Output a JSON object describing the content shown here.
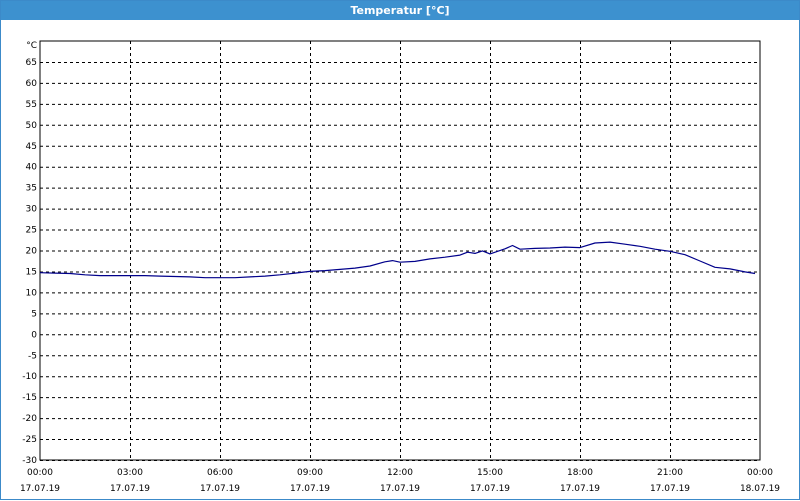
{
  "window": {
    "title": "Temperatur [°C]"
  },
  "chart_data": {
    "type": "line",
    "title": "Temperatur [°C]",
    "ylabel": "°C",
    "xlabel": "",
    "ylim": [
      -30,
      70
    ],
    "xlim": [
      "2019-07-17 00:00",
      "2019-07-18 00:00"
    ],
    "grid": true,
    "y_ticks": [
      65,
      60,
      55,
      50,
      45,
      40,
      35,
      30,
      25,
      20,
      15,
      10,
      5,
      0,
      -5,
      -10,
      -15,
      -20,
      -25,
      -30
    ],
    "x_ticks": [
      {
        "time": "00:00",
        "date": "17.07.19"
      },
      {
        "time": "03:00",
        "date": "17.07.19"
      },
      {
        "time": "06:00",
        "date": "17.07.19"
      },
      {
        "time": "09:00",
        "date": "17.07.19"
      },
      {
        "time": "12:00",
        "date": "17.07.19"
      },
      {
        "time": "15:00",
        "date": "17.07.19"
      },
      {
        "time": "18:00",
        "date": "17.07.19"
      },
      {
        "time": "21:00",
        "date": "17.07.19"
      },
      {
        "time": "00:00",
        "date": "18.07.19"
      }
    ],
    "series": [
      {
        "color": "#00008b",
        "x": [
          "00:00",
          "00:30",
          "01:00",
          "01:30",
          "02:00",
          "02:30",
          "03:00",
          "03:30",
          "04:00",
          "04:30",
          "05:00",
          "05:30",
          "06:00",
          "06:30",
          "07:00",
          "07:30",
          "08:00",
          "08:30",
          "09:00",
          "09:30",
          "10:00",
          "10:30",
          "11:00",
          "11:30",
          "11:45",
          "12:00",
          "12:30",
          "13:00",
          "13:30",
          "14:00",
          "14:15",
          "14:30",
          "14:45",
          "15:00",
          "15:30",
          "15:45",
          "16:00",
          "16:30",
          "17:00",
          "17:30",
          "18:00",
          "18:30",
          "19:00",
          "19:30",
          "20:00",
          "20:30",
          "21:00",
          "21:30",
          "22:00",
          "22:30",
          "23:00",
          "23:30",
          "23:50"
        ],
        "y": [
          14.7,
          14.6,
          14.5,
          14.2,
          14.0,
          14.0,
          14.0,
          14.0,
          13.9,
          13.8,
          13.7,
          13.5,
          13.5,
          13.5,
          13.7,
          13.9,
          14.2,
          14.6,
          15.0,
          15.2,
          15.5,
          15.8,
          16.3,
          17.3,
          17.6,
          17.2,
          17.4,
          18.0,
          18.4,
          18.9,
          19.6,
          19.3,
          19.9,
          19.2,
          20.4,
          21.2,
          20.3,
          20.5,
          20.6,
          20.8,
          20.7,
          21.8,
          22.0,
          21.5,
          21.0,
          20.3,
          19.8,
          19.0,
          17.5,
          16.0,
          15.6,
          14.9,
          14.5
        ]
      }
    ]
  }
}
